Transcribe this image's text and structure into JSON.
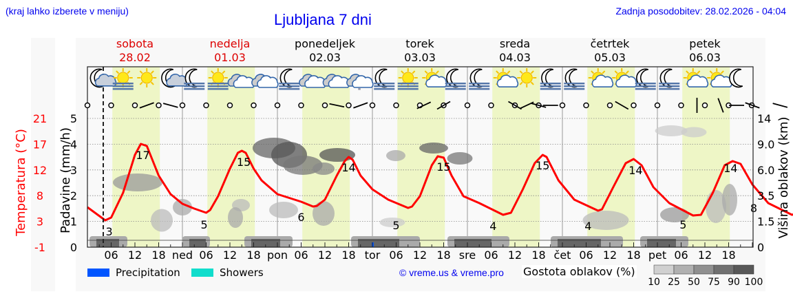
{
  "header": {
    "hint": "(kraj lahko izberete v meniju)",
    "title": "Ljubljana 7 dni",
    "updated": "Zadnja posodobitev: 28.02.2026 - 04:04"
  },
  "days": [
    {
      "name": "sobota",
      "date": "28.02",
      "color": "#dd0000"
    },
    {
      "name": "nedelja",
      "date": "01.03",
      "color": "#dd0000"
    },
    {
      "name": "ponedeljek",
      "date": "02.03",
      "color": "#000000"
    },
    {
      "name": "torek",
      "date": "03.03",
      "color": "#000000"
    },
    {
      "name": "sreda",
      "date": "04.03",
      "color": "#000000"
    },
    {
      "name": "četrtek",
      "date": "05.03",
      "color": "#000000"
    },
    {
      "name": "petek",
      "date": "06.03",
      "color": "#000000"
    }
  ],
  "x_ticks": [
    "06",
    "12",
    "18",
    "ned",
    "06",
    "12",
    "18",
    "pon",
    "06",
    "12",
    "18",
    "tor",
    "06",
    "12",
    "18",
    "sre",
    "06",
    "12",
    "18",
    "čet",
    "06",
    "12",
    "18",
    "pet",
    "06",
    "12",
    "18"
  ],
  "weather_icons": [
    "moon-cloud",
    "sun-fog",
    "sun",
    "moon-cloud",
    "moon-fog",
    "sun-fog",
    "cloud",
    "cloud",
    "moon-fog",
    "cloud",
    "cloud",
    "cloud-drizzle",
    "moon-fog",
    "sun-fog",
    "sun-cloud",
    "moon-fog",
    "moon-fog",
    "sun-cloud",
    "sun",
    "moon-fog",
    "moon-fog",
    "sun-cloud",
    "sun-cloud",
    "moon-fog",
    "moon-fog",
    "sun-cloud",
    "sun-cloud",
    "moon"
  ],
  "axes": {
    "left_temp_label": "Temperatura (°C)",
    "left_temp_ticks": [
      "21",
      "17",
      "12",
      "8",
      "3",
      "-1"
    ],
    "left_precip_label": "Padavine (mm/h)",
    "left_precip_ticks": [
      "5",
      "4",
      "3",
      "2",
      "1",
      "0"
    ],
    "right_label": "Višina oblakov (km)",
    "right_ticks": [
      "14",
      "9.0",
      "6.0",
      "3.5",
      "1.5",
      "0"
    ]
  },
  "legend": {
    "precipitation": "Precipitation",
    "precipitation_color": "#0055ff",
    "showers": "Showers",
    "showers_color": "#11ddcc",
    "copyright": "© vreme.us & vreme.pro",
    "density_label": "Gostota oblakov (%)",
    "density_scale": [
      "10",
      "25",
      "50",
      "75",
      "90",
      "100"
    ]
  },
  "chart_data": {
    "type": "line",
    "title": "Ljubljana 7 dni",
    "xlabel": "",
    "ylabel": "Temperatura (°C) / Padavine (mm/h)",
    "y2label": "Višina oblakov (km)",
    "ylim_temp": [
      -1,
      21
    ],
    "ylim_precip": [
      0,
      5
    ],
    "grid": true,
    "series": [
      {
        "name": "Temperatura",
        "color": "#ff0000",
        "daily_min_max_labels": [
          {
            "day": "sobota",
            "min": 3,
            "max": 17
          },
          {
            "day": "nedelja",
            "min": 5,
            "max": 15
          },
          {
            "day": "ponedeljek",
            "min": 6,
            "max": 14
          },
          {
            "day": "torek",
            "min": 5,
            "max": 15
          },
          {
            "day": "sreda",
            "min": 4,
            "max": 15
          },
          {
            "day": "četrtek",
            "min": 4,
            "max": 14
          },
          {
            "day": "petek",
            "min": 5,
            "max": 14
          }
        ],
        "end_value": 8
      }
    ],
    "precipitation_mm_h": "≈0 (trace on torek 00h)",
    "legend_position": "bottom"
  }
}
